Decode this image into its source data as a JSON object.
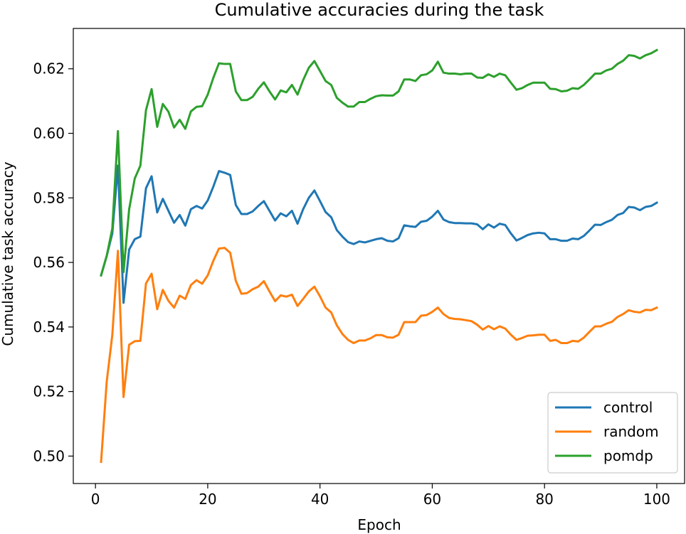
{
  "chart_data": {
    "type": "line",
    "title": "Cumulative accuracies during the task",
    "xlabel": "Epoch",
    "ylabel": "Cumulative task accuracy",
    "xlim": [
      -3.95,
      104.95
    ],
    "ylim": [
      0.4915,
      0.6325
    ],
    "xticks": [
      0,
      20,
      40,
      60,
      80,
      100
    ],
    "yticks": [
      0.5,
      0.52,
      0.54,
      0.56,
      0.58,
      0.6,
      0.62
    ],
    "xtick_labels": [
      "0",
      "20",
      "40",
      "60",
      "80",
      "100"
    ],
    "ytick_labels": [
      "0.50",
      "0.52",
      "0.54",
      "0.56",
      "0.58",
      "0.60",
      "0.62"
    ],
    "grid": false,
    "legend_position": "lower right",
    "x": [
      1,
      2,
      3,
      4,
      5,
      6,
      7,
      8,
      9,
      10,
      11,
      12,
      13,
      14,
      15,
      16,
      17,
      18,
      19,
      20,
      21,
      22,
      23,
      24,
      25,
      26,
      27,
      28,
      29,
      30,
      31,
      32,
      33,
      34,
      35,
      36,
      37,
      38,
      39,
      40,
      41,
      42,
      43,
      44,
      45,
      46,
      47,
      48,
      49,
      50,
      51,
      52,
      53,
      54,
      55,
      56,
      57,
      58,
      59,
      60,
      61,
      62,
      63,
      64,
      65,
      66,
      67,
      68,
      69,
      70,
      71,
      72,
      73,
      74,
      75,
      76,
      77,
      78,
      79,
      80,
      81,
      82,
      83,
      84,
      85,
      86,
      87,
      88,
      89,
      90,
      91,
      92,
      93,
      94,
      95,
      96,
      97,
      98,
      99,
      100
    ],
    "series": [
      {
        "name": "control",
        "color": "#1f77b4",
        "values": [
          0.556,
          0.562,
          0.569,
          0.59,
          0.5475,
          0.564,
          0.5672,
          0.568,
          0.583,
          0.5867,
          0.5755,
          0.5797,
          0.576,
          0.5723,
          0.5747,
          0.5714,
          0.5765,
          0.5775,
          0.5767,
          0.5792,
          0.5835,
          0.5883,
          0.5878,
          0.5871,
          0.5778,
          0.575,
          0.575,
          0.5758,
          0.5775,
          0.579,
          0.576,
          0.573,
          0.5752,
          0.5743,
          0.576,
          0.572,
          0.5765,
          0.58,
          0.5823,
          0.579,
          0.5756,
          0.574,
          0.57,
          0.568,
          0.5663,
          0.5657,
          0.5665,
          0.5662,
          0.5667,
          0.5672,
          0.5675,
          0.5667,
          0.5665,
          0.5675,
          0.5715,
          0.5712,
          0.571,
          0.5726,
          0.5729,
          0.5742,
          0.576,
          0.5733,
          0.5725,
          0.5722,
          0.5722,
          0.5721,
          0.5721,
          0.5718,
          0.5703,
          0.5718,
          0.5708,
          0.572,
          0.5716,
          0.569,
          0.5668,
          0.5676,
          0.5685,
          0.569,
          0.5692,
          0.569,
          0.5672,
          0.5672,
          0.5667,
          0.5667,
          0.5674,
          0.5672,
          0.5682,
          0.5699,
          0.5717,
          0.5716,
          0.5725,
          0.5732,
          0.5747,
          0.5753,
          0.5772,
          0.577,
          0.5762,
          0.5772,
          0.5775,
          0.5785
        ]
      },
      {
        "name": "random",
        "color": "#ff7f0e",
        "values": [
          0.4982,
          0.523,
          0.5375,
          0.5636,
          0.5183,
          0.5345,
          0.5356,
          0.5357,
          0.5535,
          0.5565,
          0.5455,
          0.5515,
          0.5481,
          0.546,
          0.5497,
          0.5487,
          0.553,
          0.5545,
          0.5534,
          0.556,
          0.5605,
          0.5643,
          0.5645,
          0.563,
          0.5543,
          0.5503,
          0.5505,
          0.5517,
          0.5525,
          0.5542,
          0.551,
          0.548,
          0.5498,
          0.5494,
          0.55,
          0.5465,
          0.5487,
          0.551,
          0.5525,
          0.5495,
          0.546,
          0.5445,
          0.5405,
          0.5378,
          0.536,
          0.535,
          0.5358,
          0.5358,
          0.5365,
          0.5375,
          0.5375,
          0.5368,
          0.5367,
          0.5376,
          0.5415,
          0.5415,
          0.5415,
          0.5435,
          0.5437,
          0.5447,
          0.546,
          0.544,
          0.5428,
          0.5425,
          0.5424,
          0.5421,
          0.5418,
          0.5407,
          0.5392,
          0.5403,
          0.5393,
          0.5402,
          0.5395,
          0.5376,
          0.536,
          0.5366,
          0.5373,
          0.5374,
          0.5376,
          0.5376,
          0.5357,
          0.536,
          0.535,
          0.535,
          0.5357,
          0.5355,
          0.5367,
          0.5385,
          0.5402,
          0.5402,
          0.541,
          0.5416,
          0.5431,
          0.544,
          0.5452,
          0.5447,
          0.5445,
          0.5453,
          0.5452,
          0.546
        ]
      },
      {
        "name": "pomdp",
        "color": "#2ca02c",
        "values": [
          0.556,
          0.562,
          0.5705,
          0.6007,
          0.557,
          0.5765,
          0.586,
          0.59,
          0.6072,
          0.6137,
          0.602,
          0.6091,
          0.6067,
          0.6018,
          0.6042,
          0.6014,
          0.6068,
          0.6082,
          0.6084,
          0.612,
          0.6172,
          0.6217,
          0.6215,
          0.6215,
          0.613,
          0.6103,
          0.6103,
          0.6113,
          0.6138,
          0.6158,
          0.613,
          0.6105,
          0.6133,
          0.6127,
          0.615,
          0.612,
          0.6165,
          0.6203,
          0.6224,
          0.6193,
          0.6162,
          0.615,
          0.611,
          0.6095,
          0.6083,
          0.6083,
          0.6097,
          0.6097,
          0.6107,
          0.6115,
          0.6118,
          0.6117,
          0.6117,
          0.613,
          0.6167,
          0.6167,
          0.6162,
          0.618,
          0.6183,
          0.6195,
          0.6222,
          0.6188,
          0.6185,
          0.6185,
          0.6183,
          0.6185,
          0.6185,
          0.6173,
          0.6172,
          0.6183,
          0.6175,
          0.6185,
          0.618,
          0.6157,
          0.6135,
          0.614,
          0.615,
          0.6157,
          0.6157,
          0.6157,
          0.6138,
          0.6137,
          0.613,
          0.6132,
          0.614,
          0.6138,
          0.615,
          0.6167,
          0.6185,
          0.6185,
          0.6195,
          0.62,
          0.6215,
          0.6225,
          0.6242,
          0.624,
          0.6232,
          0.6242,
          0.6248,
          0.6258
        ]
      }
    ]
  }
}
